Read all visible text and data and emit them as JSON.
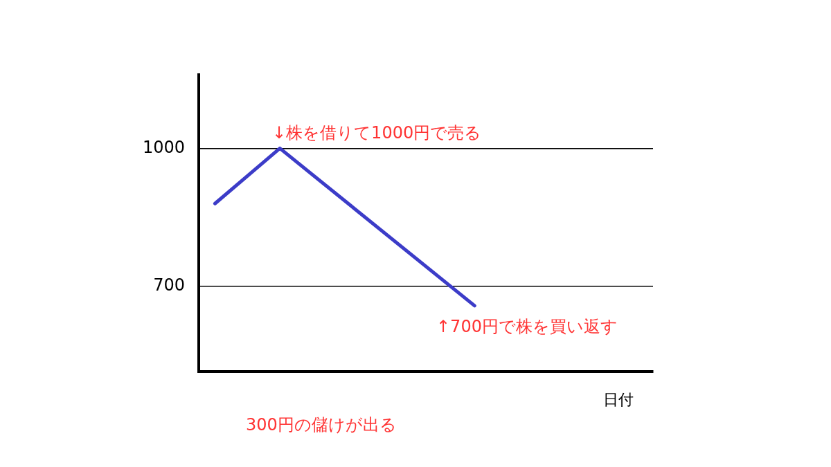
{
  "chart_data": {
    "type": "line",
    "xlabel": "日付",
    "categories": [
      null,
      null,
      null,
      null,
      null,
      null,
      null,
      null,
      null,
      null,
      null,
      null,
      null,
      null
    ],
    "series": [
      {
        "color": "#3c3cc8",
        "values": [
          880,
          null,
          1000,
          null,
          null,
          null,
          null,
          null,
          658,
          null,
          null,
          null,
          null,
          null
        ]
      }
    ],
    "ylim": [
      515,
      1160
    ],
    "yticks": [
      700,
      1000
    ],
    "tick_labels": "y",
    "grid": "y",
    "marker": "none",
    "annotations": [
      "↓株を借りて1000円で売る",
      "↑700円で株を買い返す",
      "300円の儲けが出る"
    ]
  }
}
